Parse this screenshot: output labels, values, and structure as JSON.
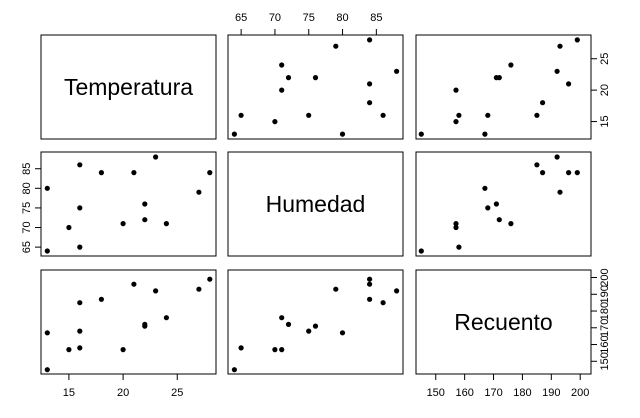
{
  "chart_data": {
    "type": "scatter",
    "variables": [
      "Temperatura",
      "Humedad",
      "Recuento"
    ],
    "axis_ticks": {
      "Temperatura": [
        15,
        20,
        25
      ],
      "Humedad": [
        65,
        70,
        75,
        80,
        85
      ],
      "Recuento": [
        150,
        160,
        170,
        180,
        190,
        200
      ]
    },
    "axis_tick_labels": {
      "Temperatura": [
        "15",
        "20",
        "25"
      ],
      "Humedad": [
        "65",
        "70",
        "75",
        "80",
        "85"
      ],
      "Recuento": [
        "150",
        "160",
        "170",
        "180",
        "190",
        "200"
      ]
    },
    "axis_ranges": {
      "Temperatura": [
        12.7,
        28.3
      ],
      "Humedad": [
        63.5,
        88.5
      ],
      "Recuento": [
        144.2,
        202.7
      ]
    },
    "observations": [
      {
        "Temperatura": 13,
        "Humedad": 80,
        "Recuento": 167
      },
      {
        "Temperatura": 13,
        "Humedad": 64,
        "Recuento": 145
      },
      {
        "Temperatura": 15,
        "Humedad": 70,
        "Recuento": 157
      },
      {
        "Temperatura": 16,
        "Humedad": 86,
        "Recuento": 185
      },
      {
        "Temperatura": 16,
        "Humedad": 75,
        "Recuento": 168
      },
      {
        "Temperatura": 16,
        "Humedad": 65,
        "Recuento": 158
      },
      {
        "Temperatura": 18,
        "Humedad": 84,
        "Recuento": 187
      },
      {
        "Temperatura": 20,
        "Humedad": 71,
        "Recuento": 157
      },
      {
        "Temperatura": 21,
        "Humedad": 84,
        "Recuento": 196
      },
      {
        "Temperatura": 22,
        "Humedad": 76,
        "Recuento": 171
      },
      {
        "Temperatura": 22,
        "Humedad": 72,
        "Recuento": 172
      },
      {
        "Temperatura": 23,
        "Humedad": 88,
        "Recuento": 192
      },
      {
        "Temperatura": 24,
        "Humedad": 71,
        "Recuento": 176
      },
      {
        "Temperatura": 27,
        "Humedad": 79,
        "Recuento": 193
      },
      {
        "Temperatura": 28,
        "Humedad": 84,
        "Recuento": 199
      }
    ]
  }
}
